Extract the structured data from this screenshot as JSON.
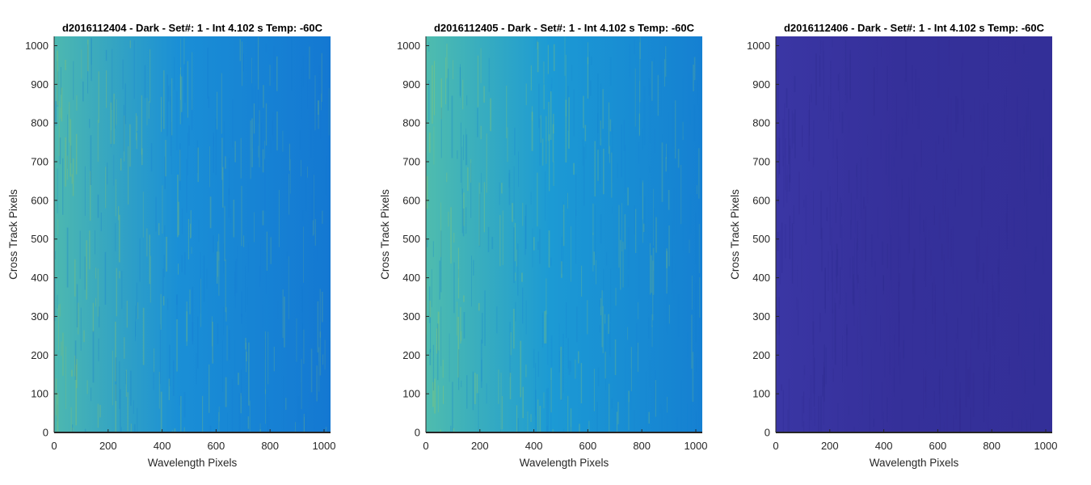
{
  "chart_data": [
    {
      "type": "heatmap",
      "title": "d2016112404 - Dark - Set#: 1 - Int 4.102 s Temp: -60C",
      "xlabel": "Wavelength Pixels",
      "ylabel": "Cross Track Pixels",
      "xlim": [
        0,
        1024
      ],
      "ylim": [
        0,
        1024
      ],
      "xticks": [
        0,
        200,
        400,
        600,
        800,
        1000
      ],
      "yticks": [
        0,
        100,
        200,
        300,
        400,
        500,
        600,
        700,
        800,
        900,
        1000
      ],
      "colormap": "parula",
      "base_color": "#1a8fd6",
      "accent_color": "#4db8b0",
      "stripe_color": "#8cc26a",
      "right_color": "#1478d2"
    },
    {
      "type": "heatmap",
      "title": "d2016112405 - Dark - Set#: 1 - Int 4.102 s Temp: -60C",
      "xlabel": "Wavelength Pixels",
      "ylabel": "Cross Track Pixels",
      "xlim": [
        0,
        1024
      ],
      "ylim": [
        0,
        1024
      ],
      "xticks": [
        0,
        200,
        400,
        600,
        800,
        1000
      ],
      "yticks": [
        0,
        100,
        200,
        300,
        400,
        500,
        600,
        700,
        800,
        900,
        1000
      ],
      "colormap": "parula",
      "base_color": "#1c9ad4",
      "accent_color": "#4fbcae",
      "stripe_color": "#92c868",
      "right_color": "#1580d2"
    },
    {
      "type": "heatmap",
      "title": "d2016112406 - Dark - Set#: 1 - Int 4.102 s Temp: -60C",
      "xlabel": "Wavelength Pixels",
      "ylabel": "Cross Track Pixels",
      "xlim": [
        0,
        1024
      ],
      "ylim": [
        0,
        1024
      ],
      "xticks": [
        0,
        200,
        400,
        600,
        800,
        1000
      ],
      "yticks": [
        0,
        100,
        200,
        300,
        400,
        500,
        600,
        700,
        800,
        900,
        1000
      ],
      "colormap": "parula",
      "base_color": "#35309a",
      "accent_color": "#3a36a4",
      "stripe_color": "#2f2b90",
      "right_color": "#332f98"
    }
  ]
}
